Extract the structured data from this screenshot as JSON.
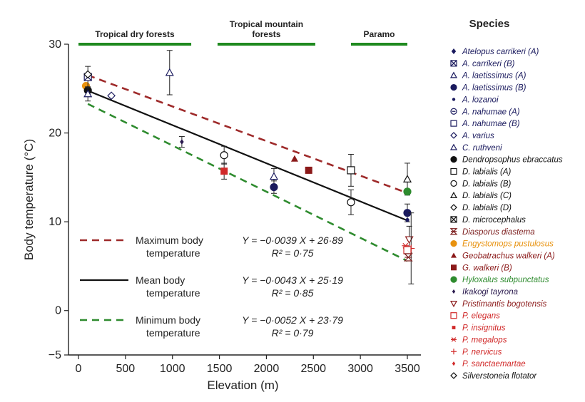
{
  "chart_data": {
    "type": "scatter",
    "xlabel": "Elevation (m)",
    "ylabel": "Body temperature (°C)",
    "xlim": [
      0,
      3600
    ],
    "ylim": [
      -5,
      30
    ],
    "x_ticks": [
      0,
      500,
      1000,
      1500,
      2000,
      2500,
      3000,
      3500
    ],
    "y_ticks": [
      -5,
      0,
      10,
      20,
      30
    ],
    "colors": {
      "max": "#9e2a2a",
      "mean": "#111111",
      "min": "#2e8b2e",
      "zone": "#1f8a1f"
    },
    "zones": [
      {
        "label": "Tropical dry forests",
        "x0": 0,
        "x1": 1200
      },
      {
        "label": "Tropical mountain forests",
        "x0": 1480,
        "x1": 2520
      },
      {
        "label": "Paramo",
        "x0": 2900,
        "x1": 3500
      }
    ],
    "fits": [
      {
        "id": "max",
        "label": [
          "Maximum body",
          "temperature"
        ],
        "style": "dashed",
        "slope": -0.0039,
        "intercept": 26.89,
        "equation": "Y = −0·0039 X + 26·89",
        "r2": "R² = 0·75"
      },
      {
        "id": "mean",
        "label": [
          "Mean body",
          "temperature"
        ],
        "style": "solid",
        "slope": -0.0043,
        "intercept": 25.19,
        "equation": "Y = −0·0043 X + 25·19",
        "r2": "R² = 0·85"
      },
      {
        "id": "min",
        "label": [
          "Minimum body",
          "temperature"
        ],
        "style": "dashed",
        "slope": -0.0052,
        "intercept": 23.79,
        "equation": "Y = −0·0052 X + 23·79",
        "r2": "R² = 0·79"
      }
    ],
    "legend_title": "Species",
    "species": [
      {
        "name": "Atelopus carrikeri (A)",
        "color": "#1a1a5e",
        "marker": "diamond-filled"
      },
      {
        "name": "A. carrikeri (B)",
        "color": "#1a1a5e",
        "marker": "square-x"
      },
      {
        "name": "A. laetissimus (A)",
        "color": "#1a1a5e",
        "marker": "triangle-open"
      },
      {
        "name": "A. laetissimus (B)",
        "color": "#1a1a5e",
        "marker": "circle-filled"
      },
      {
        "name": "A. lozanoi",
        "color": "#1a1a5e",
        "marker": "dot"
      },
      {
        "name": "A. nahumae (A)",
        "color": "#1a1a5e",
        "marker": "circle-open-dash"
      },
      {
        "name": "A. nahumae (B)",
        "color": "#1a1a5e",
        "marker": "square-open"
      },
      {
        "name": "A. varius",
        "color": "#1a1a5e",
        "marker": "diamond-open"
      },
      {
        "name": "C. ruthveni",
        "color": "#1a1a5e",
        "marker": "triangle-open"
      },
      {
        "name": "Dendropsophus ebraccatus",
        "color": "#111111",
        "marker": "circle-filled"
      },
      {
        "name": "D. labialis (A)",
        "color": "#111111",
        "marker": "square-open"
      },
      {
        "name": "D. labialis (B)",
        "color": "#111111",
        "marker": "circle-open"
      },
      {
        "name": "D. labialis (C)",
        "color": "#111111",
        "marker": "triangle-open"
      },
      {
        "name": "D. labialis (D)",
        "color": "#111111",
        "marker": "diamond-open"
      },
      {
        "name": "D. microcephalus",
        "color": "#111111",
        "marker": "square-x"
      },
      {
        "name": "Diasporus diastema",
        "color": "#7a1a1a",
        "marker": "hourglass"
      },
      {
        "name": "Engystomops pustulosus",
        "color": "#e8920f",
        "marker": "circle-filled"
      },
      {
        "name": "Geobatrachus  walkeri (A)",
        "color": "#8b1a1a",
        "marker": "triangle-filled"
      },
      {
        "name": "G. walkeri (B)",
        "color": "#8b1a1a",
        "marker": "square-filled"
      },
      {
        "name": "Hyloxalus subpunctatus",
        "color": "#2e8b2e",
        "marker": "circle-filled"
      },
      {
        "name": "Ikakogi tayrona",
        "color": "#2a1a4e",
        "marker": "diamond-filled-small"
      },
      {
        "name": "Pristimantis bogotensis",
        "color": "#8b1a1a",
        "marker": "triangle-down-open"
      },
      {
        "name": "P. elegans",
        "color": "#d12a2a",
        "marker": "square-open"
      },
      {
        "name": "P. insignitus",
        "color": "#d12a2a",
        "marker": "square-filled-small"
      },
      {
        "name": "P. megalops",
        "color": "#d12a2a",
        "marker": "asterisk"
      },
      {
        "name": "P. nervicus",
        "color": "#d12a2a",
        "marker": "plus"
      },
      {
        "name": "P. sanctaemartae",
        "color": "#d12a2a",
        "marker": "diamond-filled-small"
      },
      {
        "name": "Silverstoneia flotator",
        "color": "#111111",
        "marker": "diamond-open"
      }
    ],
    "points": [
      {
        "x": 80,
        "y": 25.3,
        "marker": "circle-filled",
        "color": "#e8920f"
      },
      {
        "x": 100,
        "y": 24.8,
        "marker": "circle-filled",
        "color": "#111111"
      },
      {
        "x": 100,
        "y": 26.3,
        "marker": "square-x",
        "color": "#1a1a5e",
        "err": [
          25.1,
          27.5
        ]
      },
      {
        "x": 100,
        "y": 24.4,
        "marker": "triangle-open",
        "color": "#1a1a5e",
        "err": [
          23.6,
          25.2
        ]
      },
      {
        "x": 100,
        "y": 26.6,
        "marker": "diamond-open",
        "color": "#111111"
      },
      {
        "x": 350,
        "y": 24.2,
        "marker": "diamond-open",
        "color": "#1a1a5e"
      },
      {
        "x": 970,
        "y": 26.8,
        "marker": "triangle-open",
        "color": "#1a1a5e",
        "err": [
          24.3,
          29.3
        ]
      },
      {
        "x": 1100,
        "y": 19.0,
        "marker": "diamond-filled-small",
        "color": "#2a1a4e",
        "err": [
          18.4,
          19.6
        ]
      },
      {
        "x": 1550,
        "y": 17.5,
        "marker": "circle-open",
        "color": "#111111",
        "err": [
          16.5,
          18.5
        ]
      },
      {
        "x": 1550,
        "y": 15.7,
        "marker": "square-filled",
        "color": "#d12a2a",
        "err": [
          14.8,
          16.6
        ]
      },
      {
        "x": 2080,
        "y": 15.1,
        "marker": "triangle-open",
        "color": "#1a1a5e",
        "err": [
          14.2,
          16.0
        ]
      },
      {
        "x": 2080,
        "y": 13.9,
        "marker": "circle-filled",
        "color": "#1a1a5e",
        "err": [
          13.2,
          14.6
        ]
      },
      {
        "x": 2300,
        "y": 17.1,
        "marker": "triangle-filled",
        "color": "#8b1a1a"
      },
      {
        "x": 2450,
        "y": 15.8,
        "marker": "square-filled",
        "color": "#8b1a1a"
      },
      {
        "x": 2900,
        "y": 15.8,
        "marker": "square-open",
        "color": "#111111",
        "err": [
          14.0,
          17.6
        ]
      },
      {
        "x": 2900,
        "y": 12.2,
        "marker": "circle-open",
        "color": "#111111",
        "err": [
          10.8,
          13.6
        ]
      },
      {
        "x": 3500,
        "y": 14.8,
        "marker": "triangle-open",
        "color": "#111111",
        "err": [
          13.0,
          16.6
        ]
      },
      {
        "x": 3500,
        "y": 13.4,
        "marker": "circle-filled",
        "color": "#2e8b2e"
      },
      {
        "x": 3500,
        "y": 11.0,
        "marker": "circle-filled",
        "color": "#1a1a5e",
        "err": [
          10.0,
          12.0
        ]
      },
      {
        "x": 3500,
        "y": 10.2,
        "marker": "dot",
        "color": "#1a1a5e"
      },
      {
        "x": 3520,
        "y": 8.0,
        "marker": "triangle-down-open",
        "color": "#8b1a1a",
        "err": [
          6.5,
          9.5
        ]
      },
      {
        "x": 3540,
        "y": 7.0,
        "marker": "plus",
        "color": "#d12a2a",
        "err": [
          3.0,
          11.0
        ]
      },
      {
        "x": 3480,
        "y": 7.3,
        "marker": "asterisk",
        "color": "#d12a2a"
      },
      {
        "x": 3500,
        "y": 6.8,
        "marker": "square-open",
        "color": "#d12a2a"
      },
      {
        "x": 3510,
        "y": 6.0,
        "marker": "hourglass",
        "color": "#7a1a1a"
      }
    ]
  }
}
